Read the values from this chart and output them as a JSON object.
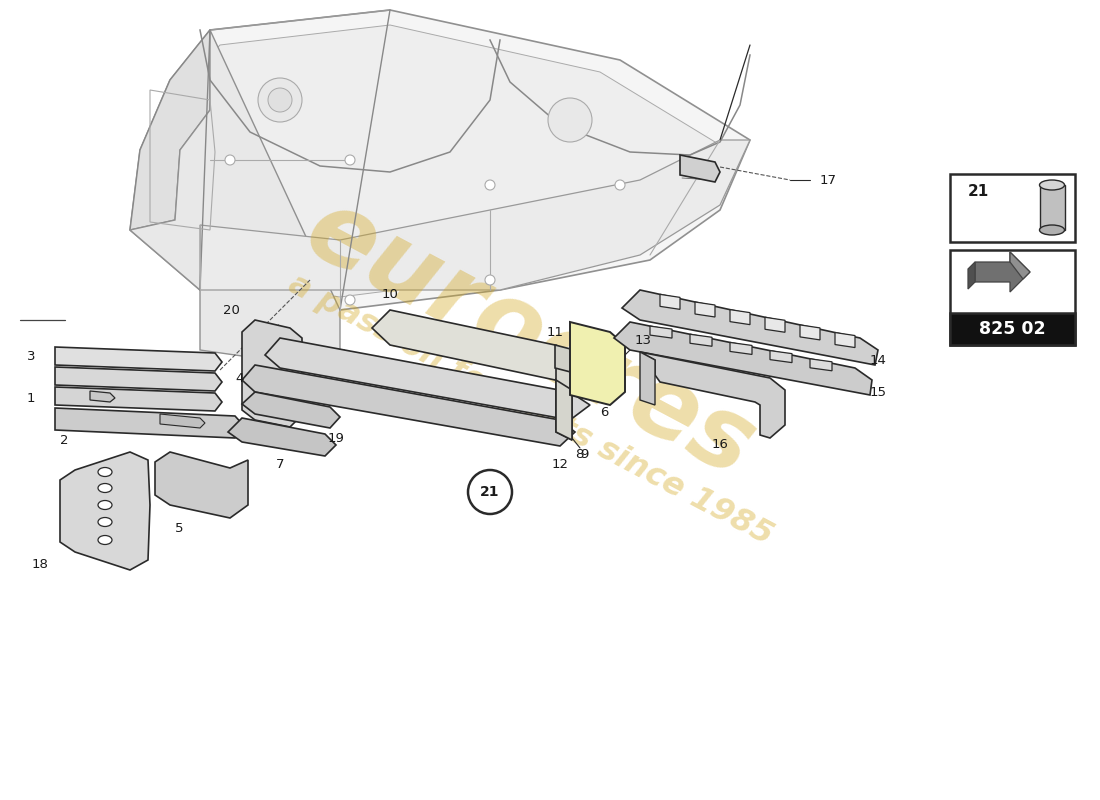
{
  "bg": "#ffffff",
  "lc": "#2a2a2a",
  "wm_color1": "#d4a820",
  "wm_color2": "#c8a030",
  "part_number": "825 02",
  "gray_light": "#e8e8e8",
  "gray_mid": "#d0d0d0",
  "gray_dark": "#b8b8b8",
  "yellow_part": "#f0f0b0",
  "label_fs": 9.5
}
